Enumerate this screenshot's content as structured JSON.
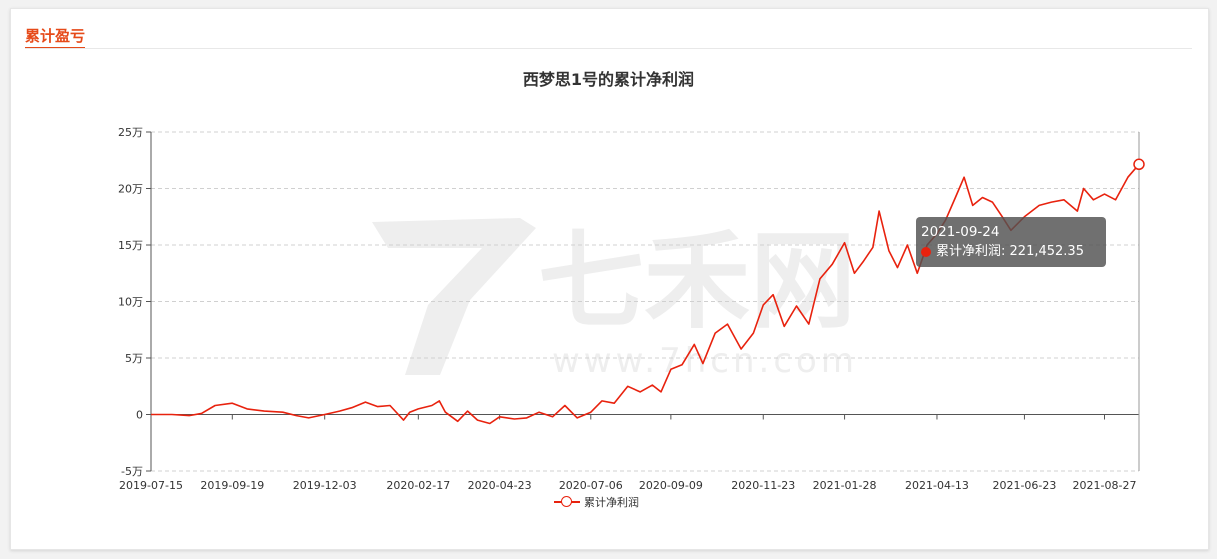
{
  "section": {
    "title": "累计盈亏"
  },
  "watermark": {
    "brand": "七禾网",
    "url": "www.7hcn.com"
  },
  "colors": {
    "series": "#e8220e",
    "accent": "#e64a19",
    "watermark": "#e6e6e6"
  },
  "tooltip": {
    "date": "2021-09-24",
    "series_label": "累计净利润",
    "value": "221,452.35"
  },
  "chart_data": {
    "type": "line",
    "title": "西梦思1号的累计净利润",
    "xlabel": "",
    "ylabel": "",
    "x_ticks": [
      "2019-07-15",
      "2019-09-19",
      "2019-12-03",
      "2020-02-17",
      "2020-04-23",
      "2020-07-06",
      "2020-09-09",
      "2020-11-23",
      "2021-01-28",
      "2021-04-13",
      "2021-06-23",
      "2021-08-27"
    ],
    "y_ticks": [
      "-5万",
      "0",
      "5万",
      "10万",
      "15万",
      "20万",
      "25万"
    ],
    "ylim": [
      -50000,
      250000
    ],
    "y_unit": "万",
    "grid": true,
    "legend_position": "bottom-center",
    "series": [
      {
        "name": "累计净利润",
        "x": [
          "2019-07-15",
          "2019-08-01",
          "2019-08-15",
          "2019-08-25",
          "2019-09-05",
          "2019-09-19",
          "2019-10-01",
          "2019-10-15",
          "2019-10-30",
          "2019-11-10",
          "2019-11-20",
          "2019-12-03",
          "2019-12-15",
          "2019-12-25",
          "2020-01-05",
          "2020-01-15",
          "2020-01-25",
          "2020-02-05",
          "2020-02-10",
          "2020-02-17",
          "2020-02-28",
          "2020-03-05",
          "2020-03-10",
          "2020-03-20",
          "2020-03-28",
          "2020-04-05",
          "2020-04-15",
          "2020-04-23",
          "2020-05-05",
          "2020-05-15",
          "2020-05-25",
          "2020-06-05",
          "2020-06-15",
          "2020-06-25",
          "2020-07-06",
          "2020-07-15",
          "2020-07-25",
          "2020-08-05",
          "2020-08-15",
          "2020-08-25",
          "2020-09-01",
          "2020-09-09",
          "2020-09-18",
          "2020-09-28",
          "2020-10-05",
          "2020-10-15",
          "2020-10-25",
          "2020-11-05",
          "2020-11-15",
          "2020-11-23",
          "2020-12-01",
          "2020-12-10",
          "2020-12-20",
          "2020-12-30",
          "2021-01-08",
          "2021-01-18",
          "2021-01-28",
          "2021-02-05",
          "2021-02-12",
          "2021-02-20",
          "2021-02-25",
          "2021-03-05",
          "2021-03-12",
          "2021-03-20",
          "2021-03-28",
          "2021-04-05",
          "2021-04-13",
          "2021-04-20",
          "2021-04-28",
          "2021-05-05",
          "2021-05-12",
          "2021-05-20",
          "2021-05-28",
          "2021-06-05",
          "2021-06-12",
          "2021-06-23",
          "2021-07-05",
          "2021-07-15",
          "2021-07-25",
          "2021-08-05",
          "2021-08-10",
          "2021-08-18",
          "2021-08-27",
          "2021-09-05",
          "2021-09-15",
          "2021-09-24"
        ],
        "values": [
          0,
          0,
          -1000,
          1000,
          8000,
          10000,
          5000,
          3000,
          2000,
          -1000,
          -3000,
          0,
          3000,
          6000,
          11000,
          7000,
          8000,
          -5000,
          2000,
          5000,
          8000,
          12000,
          2000,
          -6000,
          3000,
          -5000,
          -8000,
          -2000,
          -4000,
          -3000,
          2000,
          -2000,
          8000,
          -3000,
          2000,
          12000,
          10000,
          25000,
          20000,
          26000,
          20000,
          40000,
          44000,
          62000,
          45000,
          72000,
          80000,
          58000,
          72000,
          97000,
          106000,
          78000,
          96000,
          80000,
          120000,
          133000,
          152000,
          125000,
          135000,
          148000,
          180000,
          145000,
          130000,
          150000,
          125000,
          150000,
          160000,
          172000,
          192000,
          210000,
          185000,
          192000,
          188000,
          175000,
          163000,
          175000,
          185000,
          188000,
          190000,
          180000,
          200000,
          190000,
          195000,
          190000,
          210000,
          221452
        ]
      }
    ]
  }
}
